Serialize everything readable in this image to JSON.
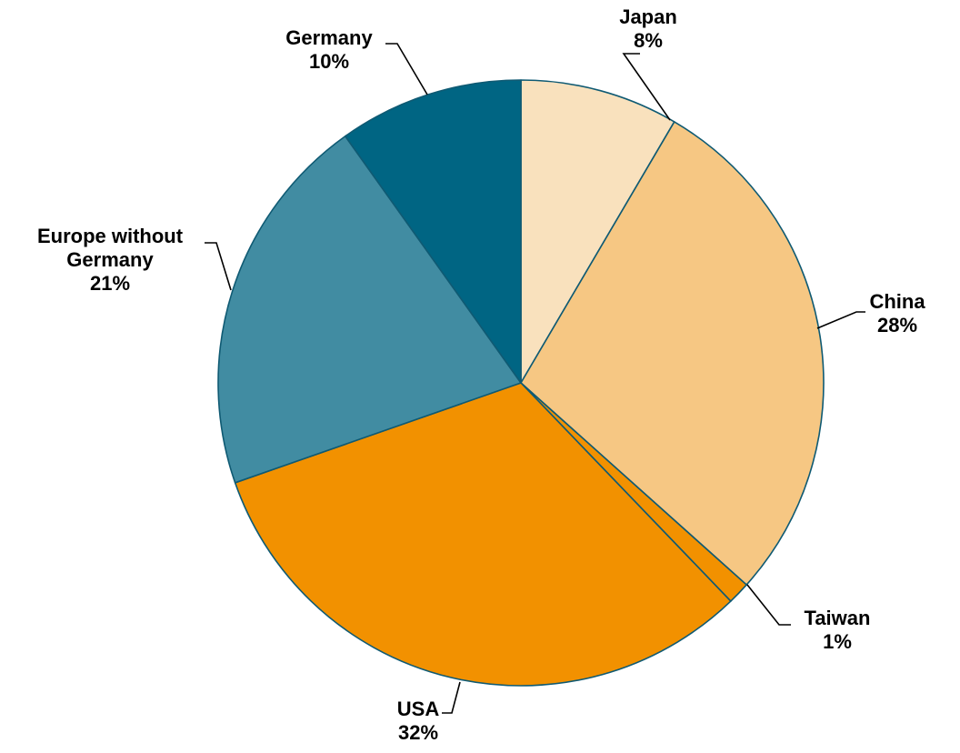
{
  "chart_data": {
    "type": "pie",
    "title": "",
    "legend": "none",
    "start_angle_deg": 0,
    "direction": "clockwise",
    "slices": [
      {
        "name": "Japan",
        "label_lines": [
          "Japan"
        ],
        "value_label": "8%",
        "value": 8.5,
        "color": "#f9e1bd"
      },
      {
        "name": "China",
        "label_lines": [
          "China"
        ],
        "value_label": "28%",
        "value": 28.3,
        "color": "#f6c783"
      },
      {
        "name": "Taiwan",
        "label_lines": [
          "Taiwan"
        ],
        "value_label": "1%",
        "value": 1.2,
        "color": "#f29100"
      },
      {
        "name": "USA",
        "label_lines": [
          "USA"
        ],
        "value_label": "32%",
        "value": 32.0,
        "color": "#f29100"
      },
      {
        "name": "Europe without Germany",
        "label_lines": [
          "Europe without",
          "Germany"
        ],
        "value_label": "21%",
        "value": 20.6,
        "color": "#418ca2"
      },
      {
        "name": "Germany",
        "label_lines": [
          "Germany"
        ],
        "value_label": "10%",
        "value": 9.9,
        "color": "#006583"
      }
    ]
  }
}
